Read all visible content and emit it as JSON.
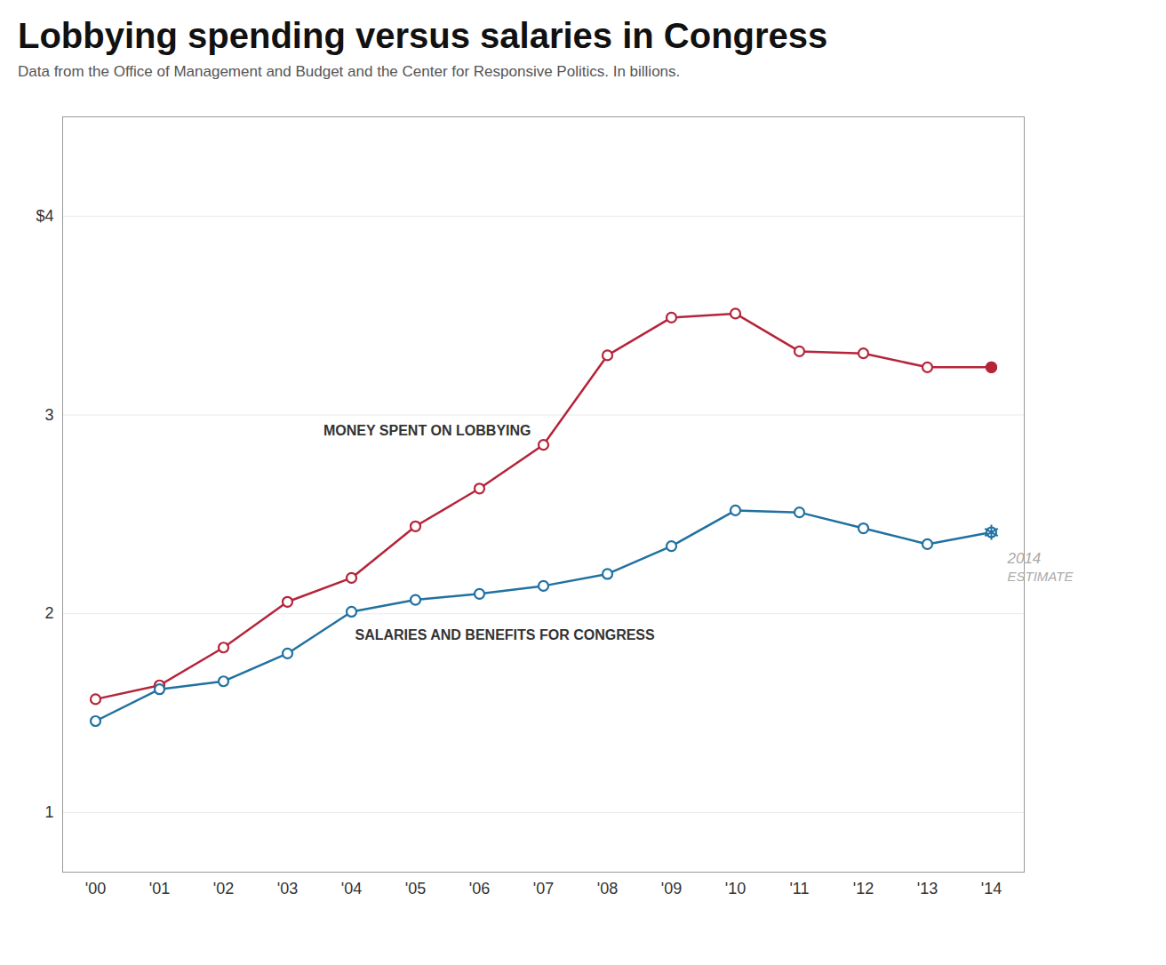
{
  "chart_data": {
    "type": "line",
    "title": "Lobbying spending versus salaries in Congress",
    "subtitle": "Data from the Office of Management and Budget and the Center for Responsive Politics. In billions.",
    "categories": [
      "'00",
      "'01",
      "'02",
      "'03",
      "'04",
      "'05",
      "'06",
      "'07",
      "'08",
      "'09",
      "'10",
      "'11",
      "'12",
      "'13",
      "'14"
    ],
    "series": [
      {
        "name": "MONEY SPENT ON LOBBYING",
        "color": "#b5243a",
        "marker": "circle",
        "values": [
          1.57,
          1.64,
          1.83,
          2.06,
          2.18,
          2.44,
          2.63,
          2.85,
          3.3,
          3.49,
          3.51,
          3.32,
          3.31,
          3.24,
          3.24
        ]
      },
      {
        "name": "SALARIES AND BENEFITS FOR CONGRESS",
        "color": "#2171a0",
        "marker": "circle",
        "values": [
          1.46,
          1.62,
          1.66,
          1.8,
          2.01,
          2.07,
          2.1,
          2.14,
          2.2,
          2.34,
          2.52,
          2.51,
          2.43,
          2.35,
          2.41
        ]
      }
    ],
    "ylim": [
      0.7,
      4.5
    ],
    "yticks": [
      1,
      2,
      3,
      {
        "value": 4,
        "label": "$4"
      }
    ],
    "grid": true,
    "annotations": [
      {
        "text": "2014",
        "color": "#aaaaaa"
      },
      {
        "text": "ESTIMATE",
        "color": "#aaaaaa"
      }
    ]
  }
}
